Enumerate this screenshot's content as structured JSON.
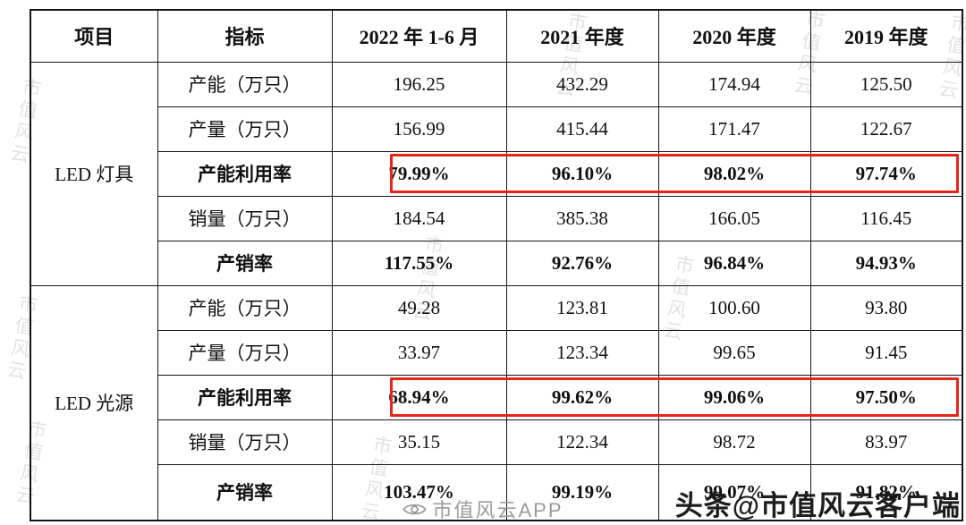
{
  "page": {
    "watermark_text": "市值风云",
    "footer_center_text": "市值风云APP",
    "footer_right_text": "头条@市值风云客户端"
  },
  "colors": {
    "highlight_border": "#e82519",
    "watermark": "#cccccc",
    "table_border": "#151515"
  },
  "table": {
    "headers": [
      "项目",
      "指标",
      "2022 年 1-6 月",
      "2021 年度",
      "2020 年度",
      "2019 年度"
    ],
    "groups": [
      {
        "name": "LED 灯具",
        "rows": [
          {
            "label": "产能（万只）",
            "bold": false,
            "highlight": false,
            "values": [
              "196.25",
              "432.29",
              "174.94",
              "125.50"
            ]
          },
          {
            "label": "产量（万只）",
            "bold": false,
            "highlight": false,
            "values": [
              "156.99",
              "415.44",
              "171.47",
              "122.67"
            ]
          },
          {
            "label": "产能利用率",
            "bold": true,
            "highlight": true,
            "values": [
              "79.99%",
              "96.10%",
              "98.02%",
              "97.74%"
            ]
          },
          {
            "label": "销量（万只）",
            "bold": false,
            "highlight": false,
            "values": [
              "184.54",
              "385.38",
              "166.05",
              "116.45"
            ]
          },
          {
            "label": "产销率",
            "bold": true,
            "highlight": false,
            "values": [
              "117.55%",
              "92.76%",
              "96.84%",
              "94.93%"
            ]
          }
        ]
      },
      {
        "name": "LED 光源",
        "rows": [
          {
            "label": "产能（万只）",
            "bold": false,
            "highlight": false,
            "values": [
              "49.28",
              "123.81",
              "100.60",
              "93.80"
            ]
          },
          {
            "label": "产量（万只）",
            "bold": false,
            "highlight": false,
            "values": [
              "33.97",
              "123.34",
              "99.65",
              "91.45"
            ]
          },
          {
            "label": "产能利用率",
            "bold": true,
            "highlight": true,
            "values": [
              "68.94%",
              "99.62%",
              "99.06%",
              "97.50%"
            ]
          },
          {
            "label": "销量（万只）",
            "bold": false,
            "highlight": false,
            "values": [
              "35.15",
              "122.34",
              "98.72",
              "83.97"
            ]
          },
          {
            "label": "产销率",
            "bold": true,
            "highlight": false,
            "values": [
              "103.47%",
              "99.19%",
              "99.07%",
              "91.82%"
            ]
          }
        ]
      }
    ]
  }
}
